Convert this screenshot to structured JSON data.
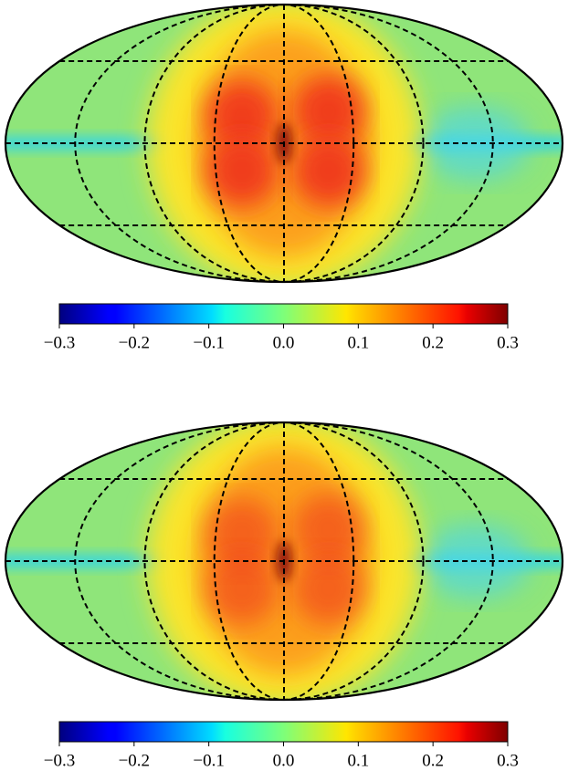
{
  "chart_data": [
    {
      "type": "mollweide",
      "colormap": "jet",
      "clim": [
        -0.3,
        0.3
      ],
      "cticks": [
        {
          "value": -0.3,
          "label": "−0.3"
        },
        {
          "value": -0.2,
          "label": "−0.2"
        },
        {
          "value": -0.1,
          "label": "−0.1"
        },
        {
          "value": 0,
          "label": "0.0"
        },
        0.1,
        0.2,
        0.3
      ]
    },
    {
      "type": "mollweide",
      "colormap": "jet",
      "clim": [
        -0.3,
        0.3
      ],
      "cticks": [
        {
          "value": -0.3,
          "label": "−0.3"
        },
        {
          "value": -0.2,
          "label": "−0.2"
        },
        {
          "value": -0.1,
          "label": "−0.1"
        },
        {
          "value": 0,
          "label": "0.0"
        },
        0.1,
        0.2,
        0.3
      ]
    }
  ]
}
